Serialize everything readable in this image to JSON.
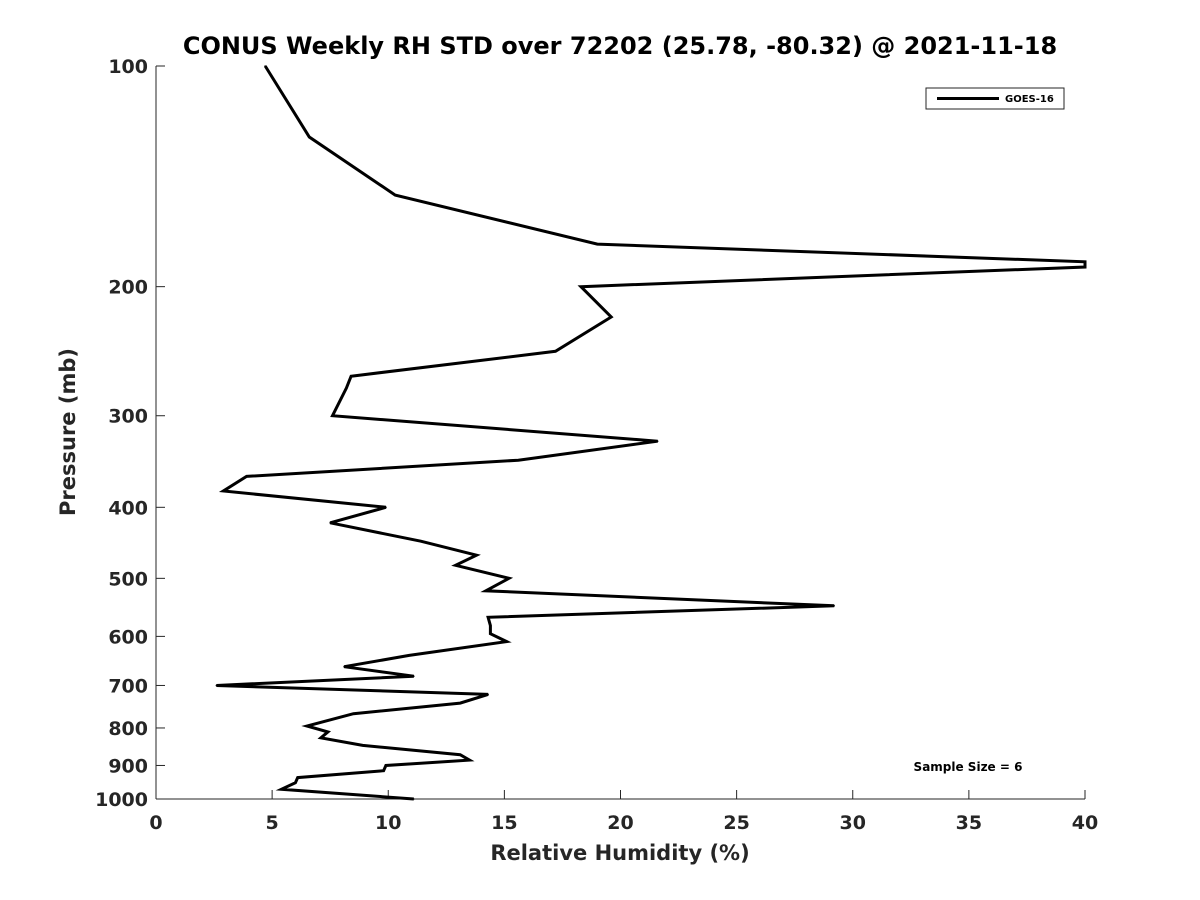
{
  "chart_data": {
    "type": "line",
    "title": "CONUS Weekly RH STD over 72202 (25.78, -80.32) @ 2021-11-18",
    "xlabel": "Relative Humidity (%)",
    "ylabel": "Pressure (mb)",
    "xlim": [
      0,
      40
    ],
    "ylim": [
      100,
      1000
    ],
    "y_scale": "log",
    "y_reversed": true,
    "grid": false,
    "x_ticks": [
      "0",
      "5",
      "10",
      "15",
      "20",
      "25",
      "30",
      "35",
      "40"
    ],
    "y_ticks": [
      "100",
      "200",
      "300",
      "400",
      "500",
      "600",
      "700",
      "800",
      "900",
      "1000"
    ],
    "legend": {
      "position": "top-right",
      "entries": [
        "GOES-16"
      ]
    },
    "annotation": "Sample Size = 6",
    "series": [
      {
        "name": "GOES-16",
        "color": "#000000",
        "points": [
          [
            4.7,
            100
          ],
          [
            6.6,
            125
          ],
          [
            10.3,
            150
          ],
          [
            19.0,
            175
          ],
          [
            40.0,
            185
          ],
          [
            40.0,
            188
          ],
          [
            18.3,
            200
          ],
          [
            19.6,
            220
          ],
          [
            17.2,
            245
          ],
          [
            8.4,
            265
          ],
          [
            8.2,
            275
          ],
          [
            7.6,
            300
          ],
          [
            21.6,
            325
          ],
          [
            15.6,
            345
          ],
          [
            3.9,
            363
          ],
          [
            2.9,
            380
          ],
          [
            9.9,
            400
          ],
          [
            7.5,
            420
          ],
          [
            11.4,
            445
          ],
          [
            13.8,
            465
          ],
          [
            12.9,
            480
          ],
          [
            15.2,
            500
          ],
          [
            14.2,
            520
          ],
          [
            29.2,
            545
          ],
          [
            14.3,
            565
          ],
          [
            14.4,
            580
          ],
          [
            14.4,
            595
          ],
          [
            15.1,
            610
          ],
          [
            10.9,
            637
          ],
          [
            8.1,
            660
          ],
          [
            11.1,
            680
          ],
          [
            2.6,
            700
          ],
          [
            14.3,
            720
          ],
          [
            13.1,
            740
          ],
          [
            8.5,
            765
          ],
          [
            6.5,
            795
          ],
          [
            7.4,
            810
          ],
          [
            7.1,
            825
          ],
          [
            8.9,
            845
          ],
          [
            13.1,
            870
          ],
          [
            13.5,
            885
          ],
          [
            9.9,
            900
          ],
          [
            9.8,
            915
          ],
          [
            6.1,
            935
          ],
          [
            6.0,
            950
          ],
          [
            5.4,
            970
          ],
          [
            11.1,
            1000
          ]
        ]
      }
    ]
  }
}
